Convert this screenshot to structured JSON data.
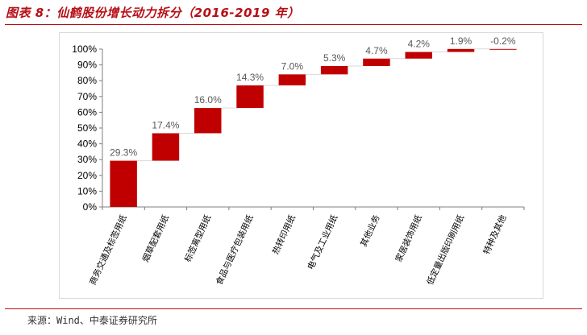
{
  "figure": {
    "title": "图表 8：仙鹤股份增长动力拆分（2016-2019 年）",
    "source": "来源：Wind、中泰证券研究所"
  },
  "colors": {
    "accent": "#b70f16",
    "bar": "#c00000",
    "axis": "#7f7f7f",
    "label": "#595959"
  },
  "chart_data": {
    "type": "bar",
    "subtype": "waterfall",
    "categories": [
      "商务交通及标签用纸",
      "烟草配套用纸",
      "标签离型用纸",
      "食品与医疗包装用纸",
      "热转印用纸",
      "电气及工业用纸",
      "其他业务",
      "家居装饰用纸",
      "低定量出版印刷用纸",
      "特种及其他"
    ],
    "values": [
      29.3,
      17.4,
      16.0,
      14.3,
      7.0,
      5.3,
      4.7,
      4.2,
      1.9,
      -0.2
    ],
    "data_labels": [
      "29.3%",
      "17.4%",
      "16.0%",
      "14.3%",
      "7.0%",
      "5.3%",
      "4.7%",
      "4.2%",
      "1.9%",
      "-0.2%"
    ],
    "yticks": [
      "0%",
      "10%",
      "20%",
      "30%",
      "40%",
      "50%",
      "60%",
      "70%",
      "80%",
      "90%",
      "100%"
    ],
    "ylim": [
      0,
      100
    ],
    "grid": false
  }
}
